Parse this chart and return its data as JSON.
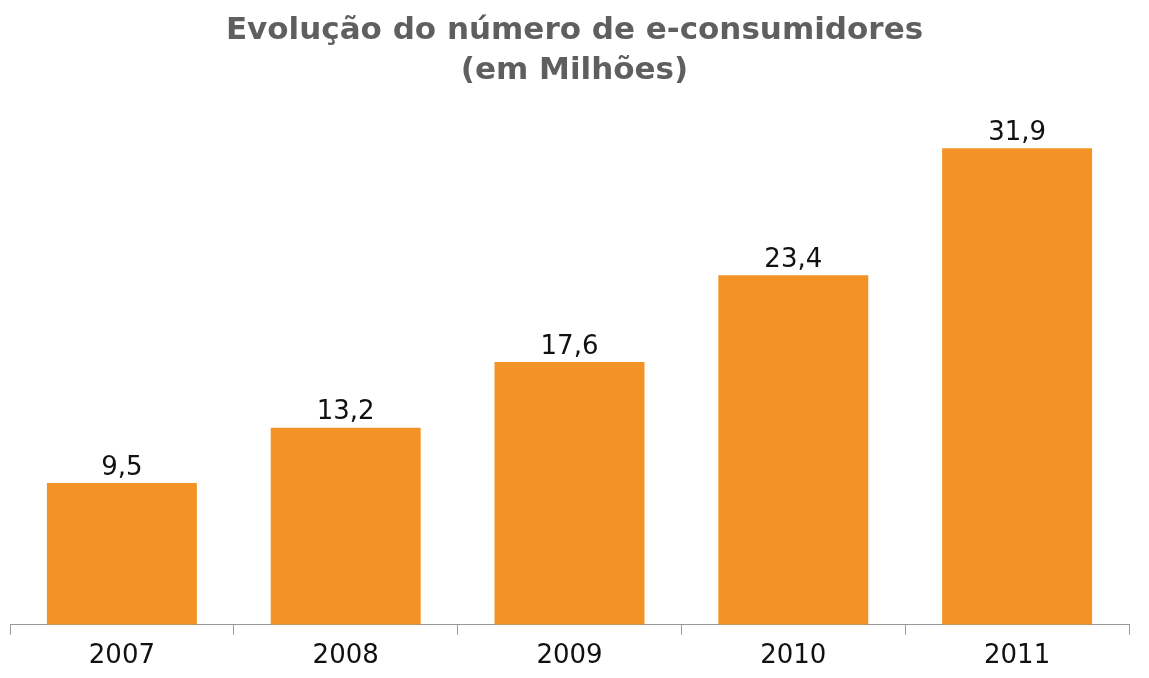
{
  "chart_data": {
    "type": "bar",
    "title": "Evolução do número de e-consumidores",
    "subtitle": "(em Milhões)",
    "categories": [
      "2007",
      "2008",
      "2009",
      "2010",
      "2011"
    ],
    "values": [
      9.5,
      13.2,
      17.6,
      23.4,
      31.9
    ],
    "value_labels": [
      "9,5",
      "13,2",
      "17,6",
      "23,4",
      "31,9"
    ],
    "color": "#f39325",
    "grid": false,
    "legend": false
  }
}
